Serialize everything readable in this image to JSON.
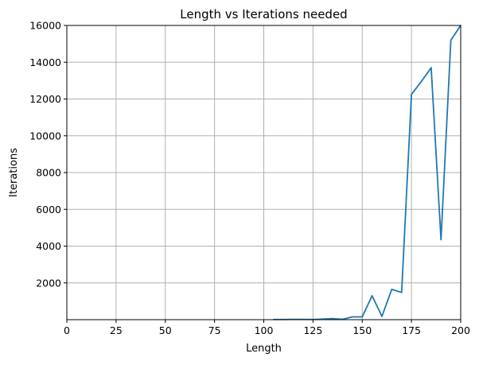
{
  "chart_data": {
    "type": "line",
    "title": "Length vs Iterations needed",
    "xlabel": "Length",
    "ylabel": "Iterations",
    "xlim": [
      0,
      200
    ],
    "ylim": [
      0,
      16000
    ],
    "grid": true,
    "line_color": "#1f77b4",
    "grid_color": "#b0b0b0",
    "x_ticks": [
      0,
      25,
      50,
      75,
      100,
      125,
      150,
      175,
      200
    ],
    "y_ticks": [
      2000,
      4000,
      6000,
      8000,
      10000,
      12000,
      14000,
      16000
    ],
    "series": [
      {
        "x": [
          105,
          110,
          115,
          120,
          125,
          130,
          135,
          140,
          145,
          150,
          155,
          160,
          165,
          170,
          175,
          180,
          185,
          190,
          195,
          200
        ],
        "y": [
          10,
          10,
          15,
          15,
          10,
          30,
          60,
          20,
          150,
          150,
          1300,
          180,
          1650,
          1480,
          12250,
          12950,
          13700,
          4350,
          15200,
          16000
        ]
      }
    ]
  }
}
